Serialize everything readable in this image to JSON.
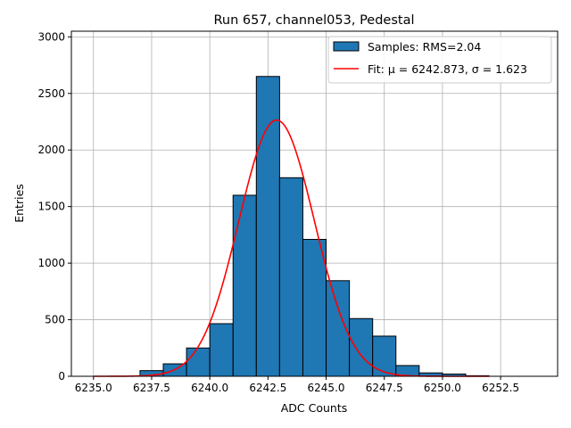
{
  "chart_data": {
    "type": "bar",
    "title": "Run 657, channel053, Pedestal",
    "xlabel": "ADC Counts",
    "ylabel": "Entries",
    "xlim": [
      6234.05,
      6254.95
    ],
    "ylim": [
      0,
      3050
    ],
    "x_ticks": [
      "6235.0",
      "6237.5",
      "6240.0",
      "6242.5",
      "6245.0",
      "6247.5",
      "6250.0",
      "6252.5"
    ],
    "x_tick_values": [
      6235.0,
      6237.5,
      6240.0,
      6242.5,
      6245.0,
      6247.5,
      6250.0,
      6252.5
    ],
    "y_ticks": [
      "0",
      "500",
      "1000",
      "1500",
      "2000",
      "2500",
      "3000"
    ],
    "y_tick_values": [
      0,
      500,
      1000,
      1500,
      2000,
      2500,
      3000
    ],
    "grid": true,
    "legend_position": "top-right",
    "bin_edges": [
      6237.0,
      6238.0,
      6239.0,
      6240.0,
      6241.0,
      6242.0,
      6243.0,
      6244.0,
      6245.0,
      6246.0,
      6247.0,
      6248.0,
      6249.0,
      6250.0,
      6251.0,
      6252.0,
      6253.0,
      6254.0
    ],
    "bin_counts": [
      50,
      110,
      250,
      465,
      1600,
      2650,
      1755,
      1210,
      845,
      510,
      355,
      95,
      30,
      20,
      5,
      0,
      0
    ],
    "series": [
      {
        "name": "Samples: RMS=2.04",
        "kind": "histogram",
        "color": "#1f77b4"
      },
      {
        "name": "Fit: μ = 6242.873, σ = 1.623",
        "kind": "gaussian-fit",
        "color": "#ff0000",
        "mu": 6242.873,
        "sigma": 1.623,
        "amplitude": 2265,
        "x_range": [
          6235.0,
          6252.0
        ]
      }
    ]
  }
}
